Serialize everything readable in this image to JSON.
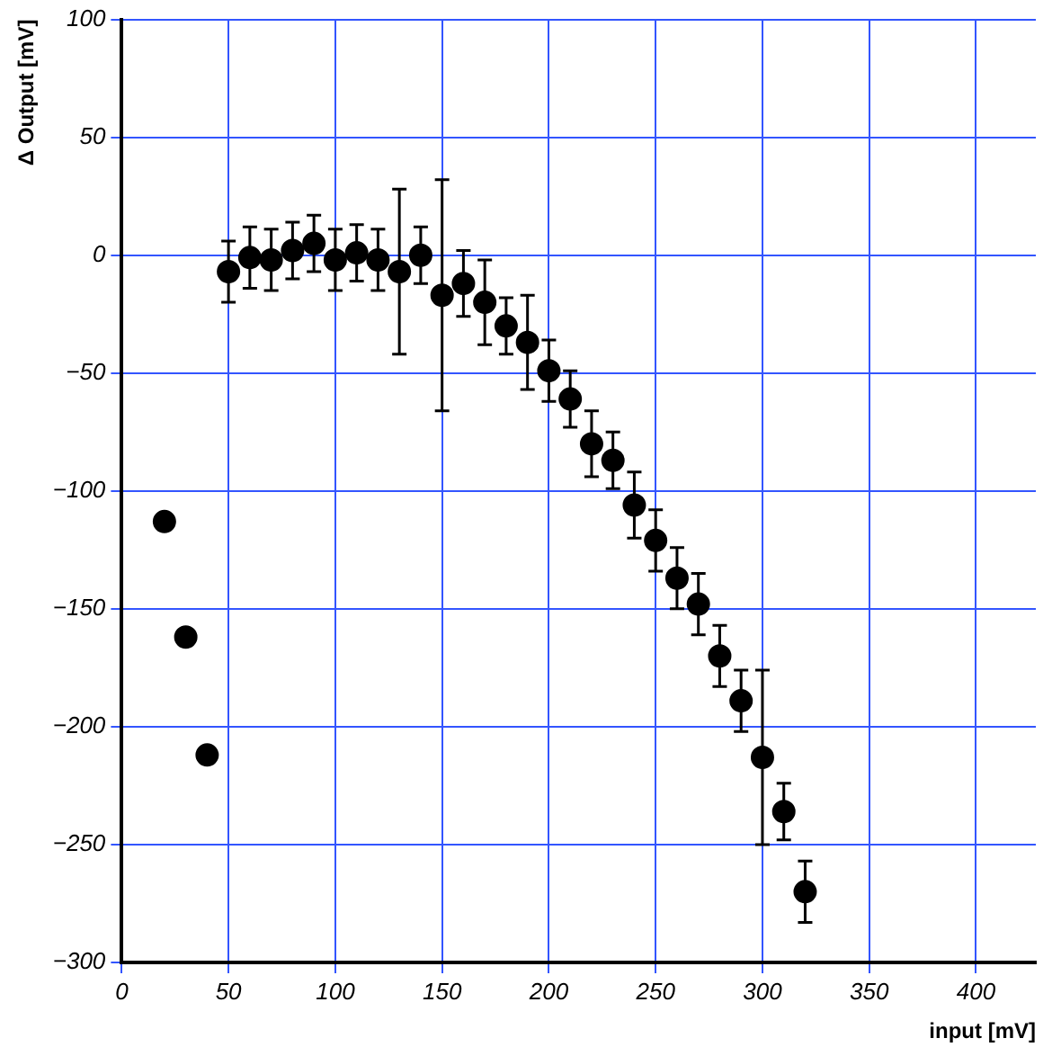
{
  "chart_data": {
    "type": "scatter",
    "xlabel": "input [mV]",
    "ylabel": "Δ Output [mV]",
    "x": [
      20,
      30,
      40,
      50,
      60,
      70,
      80,
      90,
      100,
      110,
      120,
      130,
      140,
      150,
      160,
      170,
      180,
      190,
      200,
      210,
      220,
      230,
      240,
      250,
      260,
      270,
      280,
      290,
      300,
      310,
      320
    ],
    "values": [
      -113,
      -162,
      -212,
      -7,
      -1,
      -2,
      2,
      5,
      -2,
      1,
      -2,
      -7,
      0,
      -17,
      -12,
      -20,
      -30,
      -37,
      -49,
      -61,
      -80,
      -87,
      -106,
      -121,
      -137,
      -148,
      -170,
      -189,
      -213,
      -236,
      -270
    ],
    "errors": [
      null,
      null,
      null,
      13,
      13,
      13,
      12,
      12,
      13,
      12,
      13,
      35,
      12,
      49,
      14,
      18,
      12,
      20,
      13,
      12,
      14,
      12,
      14,
      13,
      13,
      13,
      13,
      13,
      37,
      12,
      13
    ],
    "color": "#000000",
    "marker": "circle",
    "xlim": [
      0,
      428
    ],
    "xticks": [
      0,
      50,
      100,
      150,
      200,
      250,
      300,
      350,
      400
    ],
    "ylim": [
      -300,
      100
    ],
    "yticks": [
      -300,
      -250,
      -200,
      -150,
      -100,
      -50,
      0,
      50,
      100
    ],
    "grid": true,
    "legend": false
  }
}
